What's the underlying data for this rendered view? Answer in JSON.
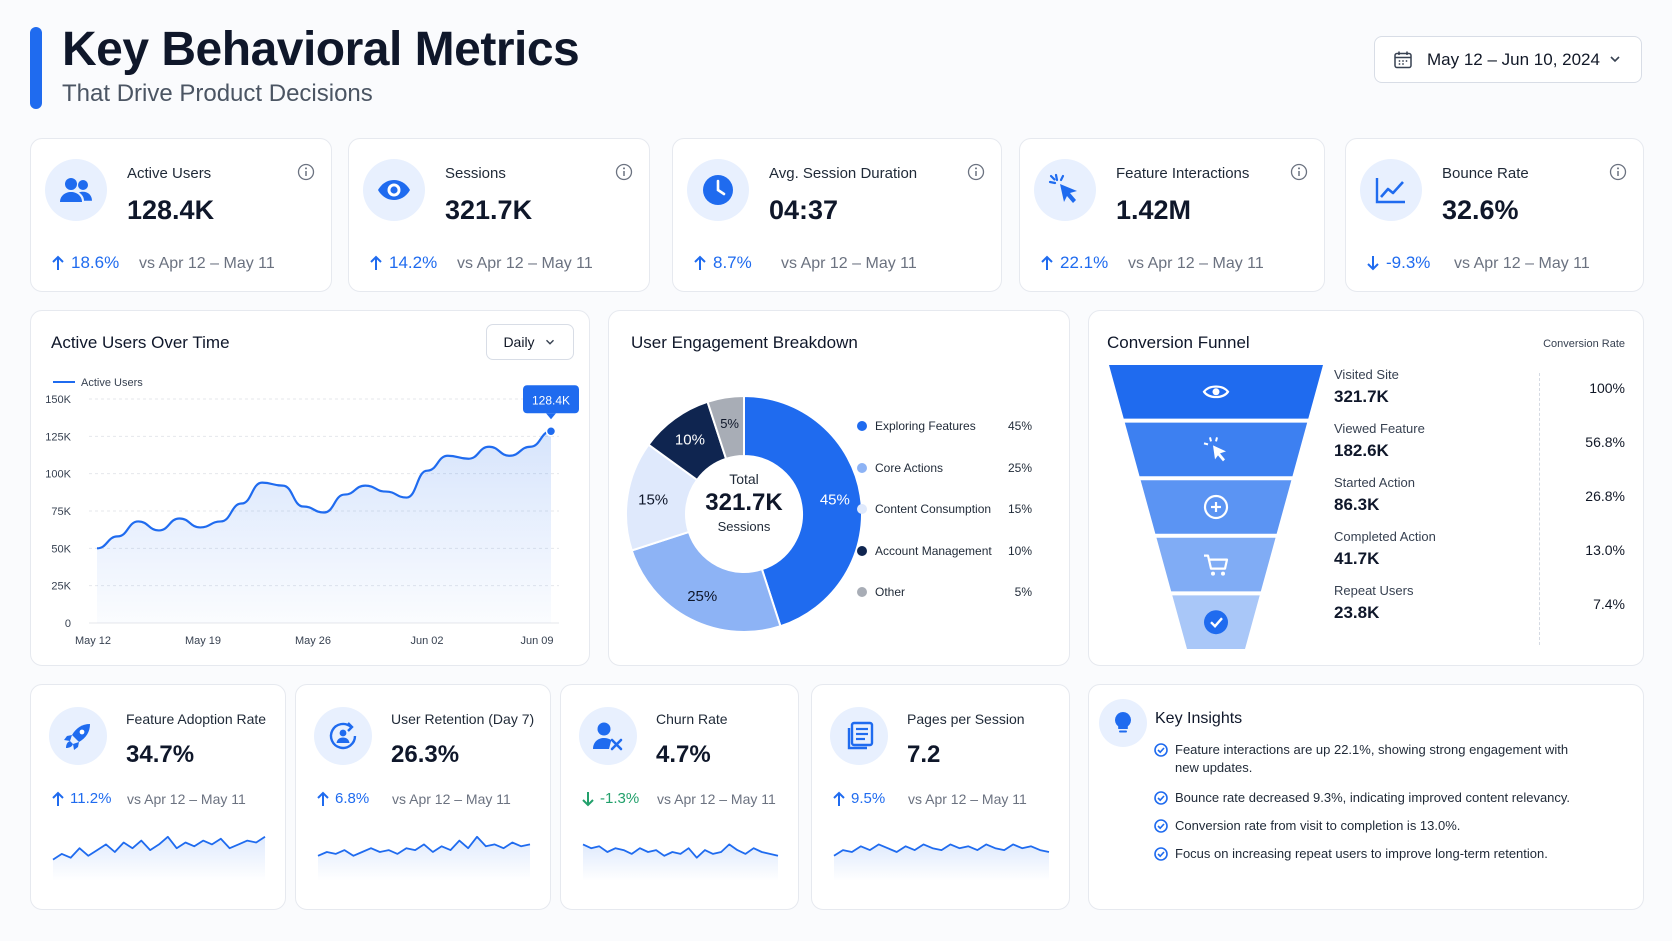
{
  "header": {
    "title": "Key Behavioral Metrics",
    "subtitle": "That Drive Product Decisions",
    "date_range": "May 12 – Jun 10, 2024"
  },
  "colors": {
    "accent": "#1f6bef",
    "negative": "#1f6bef",
    "green": "#22a06b"
  },
  "kpis": [
    {
      "label": "Active Users",
      "value": "128.4K",
      "delta": "18.6%",
      "dir": "up",
      "compare": "vs Apr 12 – May 11",
      "icon": "users-icon"
    },
    {
      "label": "Sessions",
      "value": "321.7K",
      "delta": "14.2%",
      "dir": "up",
      "compare": "vs Apr 12 – May 11",
      "icon": "eye-icon"
    },
    {
      "label": "Avg. Session Duration",
      "value": "04:37",
      "delta": "8.7%",
      "dir": "up",
      "compare": "vs Apr 12 – May 11",
      "icon": "clock-icon"
    },
    {
      "label": "Feature Interactions",
      "value": "1.42M",
      "delta": "22.1%",
      "dir": "up",
      "compare": "vs Apr 12 – May 11",
      "icon": "cursor-click-icon"
    },
    {
      "label": "Bounce Rate",
      "value": "32.6%",
      "delta": "-9.3%",
      "dir": "down",
      "compare": "vs Apr 12 – May 11",
      "icon": "line-chart-icon"
    }
  ],
  "active_users_chart": {
    "title": "Active Users Over Time",
    "interval": "Daily",
    "legend": "Active Users",
    "callout": "128.4K"
  },
  "engagement": {
    "title": "User Engagement Breakdown",
    "center_label": "Total",
    "center_value": "321.7K",
    "center_sub": "Sessions"
  },
  "funnel": {
    "title": "Conversion Funnel",
    "rate_header": "Conversion Rate",
    "steps": [
      {
        "label": "Visited Site",
        "value": "321.7K",
        "rate": "100%",
        "icon": "eye-icon"
      },
      {
        "label": "Viewed Feature",
        "value": "182.6K",
        "rate": "56.8%",
        "icon": "cursor-click-icon"
      },
      {
        "label": "Started Action",
        "value": "86.3K",
        "rate": "26.8%",
        "icon": "plus-circle-icon"
      },
      {
        "label": "Completed Action",
        "value": "41.7K",
        "rate": "13.0%",
        "icon": "cart-icon"
      },
      {
        "label": "Repeat Users",
        "value": "23.8K",
        "rate": "7.4%",
        "icon": "check-circle-icon"
      }
    ]
  },
  "bottom_kpis": [
    {
      "label": "Feature Adoption Rate",
      "value": "34.7%",
      "delta": "11.2%",
      "dir": "up",
      "compare": "vs Apr 12 – May 11",
      "icon": "rocket-icon",
      "spark": [
        0.3,
        0.45,
        0.35,
        0.6,
        0.4,
        0.55,
        0.7,
        0.5,
        0.75,
        0.6,
        0.8,
        0.55,
        0.7,
        0.9,
        0.6,
        0.75,
        0.65,
        0.8,
        0.7,
        0.85,
        0.6,
        0.7,
        0.8,
        0.75,
        0.9
      ]
    },
    {
      "label": "User Retention (Day 7)",
      "value": "26.3%",
      "delta": "6.8%",
      "dir": "up",
      "compare": "vs Apr 12 – May 11",
      "icon": "refresh-user-icon",
      "spark": [
        0.4,
        0.5,
        0.45,
        0.55,
        0.4,
        0.5,
        0.6,
        0.5,
        0.55,
        0.45,
        0.6,
        0.55,
        0.7,
        0.5,
        0.65,
        0.55,
        0.8,
        0.6,
        0.9,
        0.65,
        0.7,
        0.6,
        0.75,
        0.65,
        0.7
      ]
    },
    {
      "label": "Churn Rate",
      "value": "4.7%",
      "delta": "-1.3%",
      "dir": "down",
      "compare": "vs Apr 12 – May 11",
      "icon": "user-x-icon",
      "spark": [
        0.7,
        0.6,
        0.65,
        0.5,
        0.6,
        0.55,
        0.45,
        0.6,
        0.5,
        0.55,
        0.4,
        0.5,
        0.45,
        0.6,
        0.35,
        0.55,
        0.45,
        0.5,
        0.7,
        0.55,
        0.45,
        0.6,
        0.5,
        0.45,
        0.4
      ]
    },
    {
      "label": "Pages per Session",
      "value": "7.2",
      "delta": "9.5%",
      "dir": "up",
      "compare": "vs Apr 12 – May 11",
      "icon": "pages-icon",
      "spark": [
        0.4,
        0.55,
        0.5,
        0.65,
        0.55,
        0.7,
        0.6,
        0.5,
        0.65,
        0.55,
        0.7,
        0.6,
        0.55,
        0.7,
        0.6,
        0.65,
        0.55,
        0.7,
        0.6,
        0.55,
        0.7,
        0.6,
        0.65,
        0.55,
        0.5
      ]
    }
  ],
  "insights": {
    "title": "Key Insights",
    "items": [
      "Feature interactions are up 22.1%, showing strong engagement with new updates.",
      "Bounce rate decreased 9.3%, indicating improved content relevancy.",
      "Conversion rate from visit to completion is 13.0%.",
      "Focus on increasing repeat users to improve long-term retention."
    ]
  },
  "chart_data": [
    {
      "type": "area",
      "title": "Active Users Over Time",
      "series": [
        {
          "name": "Active Users",
          "values": [
            50,
            58,
            68,
            62,
            70,
            64,
            68,
            80,
            94,
            92,
            78,
            74,
            86,
            92,
            88,
            84,
            102,
            112,
            110,
            118,
            112,
            118,
            128.4
          ]
        }
      ],
      "x": [
        "May 12",
        "May 14",
        "May 15",
        "May 17",
        "May 19",
        "May 21",
        "May 23",
        "May 25",
        "May 26",
        "May 28",
        "May 30",
        "Jun 01",
        "Jun 02",
        "Jun 03",
        "Jun 04",
        "Jun 05",
        "Jun 06",
        "Jun 07",
        "Jun 07",
        "Jun 08",
        "Jun 09",
        "Jun 09",
        "Jun 10"
      ],
      "xticks": [
        "May 12",
        "May 19",
        "May 26",
        "Jun 02",
        "Jun 09"
      ],
      "yticks": [
        "0",
        "25K",
        "50K",
        "75K",
        "100K",
        "125K",
        "150K"
      ],
      "ylim": [
        0,
        150
      ],
      "grid": true,
      "legend": "top-left"
    },
    {
      "type": "pie",
      "title": "User Engagement Breakdown",
      "categories": [
        "Exploring Features",
        "Core Actions",
        "Content Consumption",
        "Account Management",
        "Other"
      ],
      "values": [
        45,
        25,
        15,
        10,
        5
      ],
      "labels": [
        "45%",
        "25%",
        "15%",
        "10%",
        "5%"
      ],
      "colors": [
        "#1f6bef",
        "#8db3f5",
        "#dfe9fc",
        "#0f2550",
        "#a8adb6"
      ],
      "legend": "right"
    },
    {
      "type": "bar",
      "title": "Conversion Funnel",
      "categories": [
        "Visited Site",
        "Viewed Feature",
        "Started Action",
        "Completed Action",
        "Repeat Users"
      ],
      "values": [
        100,
        56.8,
        26.8,
        13.0,
        7.4
      ]
    }
  ]
}
